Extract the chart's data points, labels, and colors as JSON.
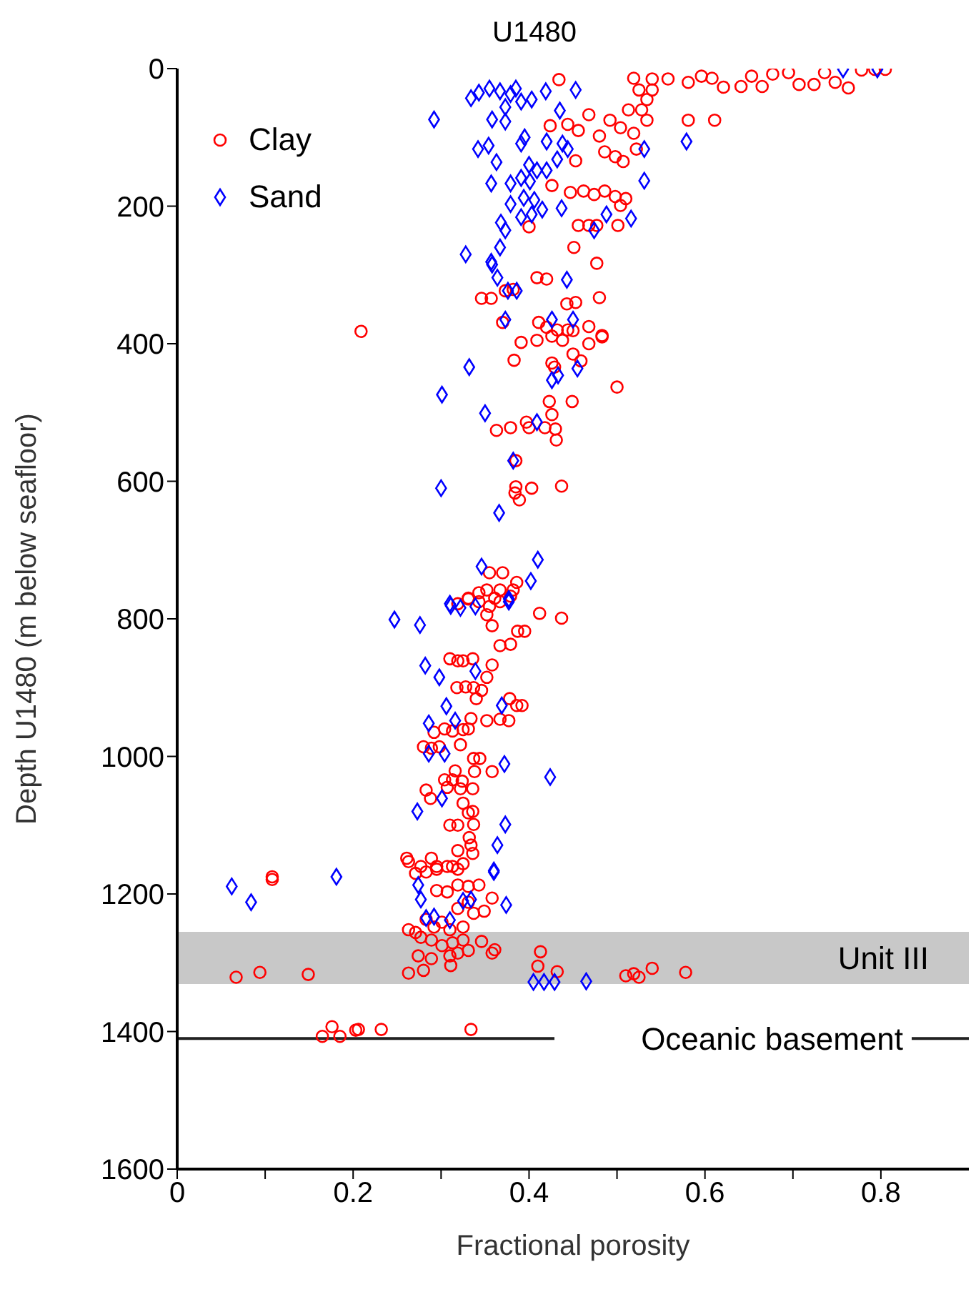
{
  "chart_data": {
    "type": "scatter",
    "title": "U1480",
    "xlabel": "Fractional porosity",
    "ylabel": "Depth U1480 (m below seafloor)",
    "xlim": [
      0,
      0.9
    ],
    "xticks": [
      0,
      {
        "value": 0.1,
        "label": null
      },
      0.2,
      {
        "value": 0.3,
        "label": null
      },
      0.4,
      {
        "value": 0.5,
        "label": null
      },
      0.6,
      {
        "value": 0.7,
        "label": null
      },
      0.8
    ],
    "ylim": [
      1600,
      0
    ],
    "yticks": [
      0,
      200,
      400,
      600,
      800,
      1000,
      1200,
      1400,
      1600
    ],
    "grid": false,
    "legend": "top left",
    "bands": [
      {
        "axis": "y",
        "from": 1255,
        "to": 1331,
        "label": "Unit III",
        "color": "#c8c8c8"
      }
    ],
    "ref_lines": [
      {
        "axis": "y",
        "value": 1410,
        "label": "Oceanic basement",
        "color": "#222222",
        "line_style": "solid"
      }
    ],
    "series": [
      {
        "name": "Clay",
        "color": "#ff0000",
        "marker": "circle",
        "x": [
          0.434,
          0.519,
          0.54,
          0.558,
          0.525,
          0.54,
          0.581,
          0.596,
          0.608,
          0.621,
          0.641,
          0.653,
          0.665,
          0.677,
          0.695,
          0.707,
          0.724,
          0.736,
          0.748,
          0.763,
          0.778,
          0.793,
          0.805,
          0.581,
          0.611,
          0.534,
          0.528,
          0.534,
          0.444,
          0.456,
          0.468,
          0.48,
          0.492,
          0.504,
          0.513,
          0.519,
          0.424,
          0.486,
          0.498,
          0.507,
          0.522,
          0.453,
          0.426,
          0.447,
          0.462,
          0.474,
          0.486,
          0.498,
          0.51,
          0.504,
          0.4,
          0.456,
          0.468,
          0.477,
          0.501,
          0.451,
          0.477,
          0.409,
          0.42,
          0.346,
          0.357,
          0.373,
          0.382,
          0.443,
          0.453,
          0.48,
          0.37,
          0.209,
          0.411,
          0.42,
          0.432,
          0.444,
          0.468,
          0.483,
          0.391,
          0.409,
          0.426,
          0.438,
          0.45,
          0.468,
          0.483,
          0.383,
          0.426,
          0.429,
          0.45,
          0.459,
          0.5,
          0.423,
          0.449,
          0.426,
          0.363,
          0.379,
          0.397,
          0.4,
          0.418,
          0.43,
          0.431,
          0.385,
          0.385,
          0.403,
          0.437,
          0.384,
          0.389,
          0.355,
          0.37,
          0.386,
          0.382,
          0.331,
          0.343,
          0.352,
          0.361,
          0.367,
          0.319,
          0.331,
          0.343,
          0.355,
          0.367,
          0.379,
          0.352,
          0.358,
          0.367,
          0.379,
          0.387,
          0.395,
          0.412,
          0.437,
          0.31,
          0.319,
          0.325,
          0.336,
          0.358,
          0.352,
          0.318,
          0.328,
          0.337,
          0.346,
          0.34,
          0.378,
          0.386,
          0.392,
          0.352,
          0.367,
          0.377,
          0.334,
          0.292,
          0.304,
          0.313,
          0.325,
          0.331,
          0.322,
          0.28,
          0.289,
          0.298,
          0.337,
          0.344,
          0.338,
          0.358,
          0.316,
          0.304,
          0.313,
          0.324,
          0.283,
          0.288,
          0.307,
          0.322,
          0.336,
          0.325,
          0.331,
          0.336,
          0.31,
          0.319,
          0.337,
          0.332,
          0.334,
          0.336,
          0.319,
          0.261,
          0.289,
          0.277,
          0.295,
          0.313,
          0.325,
          0.108,
          0.108,
          0.263,
          0.271,
          0.283,
          0.295,
          0.307,
          0.319,
          0.295,
          0.307,
          0.319,
          0.331,
          0.343,
          0.319,
          0.331,
          0.337,
          0.349,
          0.358,
          0.263,
          0.271,
          0.283,
          0.292,
          0.301,
          0.31,
          0.325,
          0.277,
          0.289,
          0.301,
          0.313,
          0.325,
          0.331,
          0.346,
          0.361,
          0.274,
          0.289,
          0.31,
          0.319,
          0.358,
          0.28,
          0.263,
          0.311,
          0.067,
          0.094,
          0.149,
          0.413,
          0.41,
          0.432,
          0.51,
          0.519,
          0.525,
          0.54,
          0.578,
          0.176,
          0.165,
          0.185,
          0.203,
          0.206,
          0.232,
          0.334
        ],
        "values": [
          16,
          14,
          15,
          15,
          31,
          31,
          20,
          11,
          14,
          27,
          26,
          11,
          26,
          8,
          6,
          23,
          23,
          6,
          20,
          28,
          2,
          1,
          1,
          75,
          75,
          45,
          60,
          75,
          81,
          90,
          67,
          98,
          75,
          86,
          60,
          94,
          83,
          121,
          128,
          135,
          117,
          134,
          170,
          180,
          178,
          183,
          178,
          186,
          189,
          199,
          230,
          228,
          228,
          228,
          228,
          260,
          283,
          304,
          306,
          334,
          334,
          323,
          321,
          342,
          340,
          333,
          369,
          382,
          369,
          376,
          380,
          380,
          375,
          388,
          398,
          395,
          389,
          395,
          381,
          400,
          390,
          424,
          428,
          434,
          415,
          425,
          463,
          484,
          484,
          503,
          526,
          522,
          514,
          522,
          522,
          524,
          540,
          570,
          608,
          610,
          607,
          617,
          627,
          733,
          733,
          747,
          758,
          770,
          762,
          758,
          770,
          758,
          778,
          771,
          775,
          782,
          775,
          767,
          794,
          810,
          839,
          837,
          818,
          818,
          792,
          799,
          858,
          861,
          861,
          858,
          867,
          885,
          900,
          899,
          900,
          904,
          916,
          916,
          926,
          926,
          948,
          946,
          948,
          945,
          965,
          960,
          963,
          961,
          960,
          983,
          986,
          988,
          986,
          1003,
          1003,
          1022,
          1022,
          1021,
          1034,
          1034,
          1036,
          1049,
          1061,
          1045,
          1047,
          1047,
          1068,
          1082,
          1080,
          1100,
          1100,
          1099,
          1118,
          1129,
          1141,
          1137,
          1148,
          1148,
          1160,
          1160,
          1160,
          1156,
          1175,
          1179,
          1153,
          1170,
          1168,
          1164,
          1160,
          1164,
          1195,
          1197,
          1187,
          1189,
          1187,
          1221,
          1212,
          1228,
          1225,
          1206,
          1252,
          1256,
          1237,
          1248,
          1241,
          1252,
          1248,
          1263,
          1267,
          1275,
          1271,
          1267,
          1282,
          1269,
          1281,
          1290,
          1294,
          1290,
          1286,
          1286,
          1311,
          1315,
          1304,
          1321,
          1314,
          1317,
          1284,
          1305,
          1313,
          1319,
          1316,
          1321,
          1308,
          1314,
          1393,
          1407,
          1407,
          1398,
          1397,
          1397,
          1397
        ]
      },
      {
        "name": "Sand",
        "color": "#0000ff",
        "marker": "diamond",
        "x": [
          0.292,
          0.334,
          0.343,
          0.355,
          0.367,
          0.379,
          0.391,
          0.403,
          0.373,
          0.385,
          0.358,
          0.373,
          0.419,
          0.453,
          0.435,
          0.342,
          0.354,
          0.391,
          0.395,
          0.42,
          0.438,
          0.363,
          0.579,
          0.531,
          0.4,
          0.391,
          0.409,
          0.42,
          0.432,
          0.444,
          0.357,
          0.379,
          0.401,
          0.531,
          0.394,
          0.406,
          0.379,
          0.415,
          0.391,
          0.403,
          0.437,
          0.488,
          0.516,
          0.474,
          0.368,
          0.373,
          0.367,
          0.328,
          0.357,
          0.358,
          0.364,
          0.376,
          0.386,
          0.443,
          0.373,
          0.426,
          0.45,
          0.332,
          0.455,
          0.426,
          0.433,
          0.301,
          0.35,
          0.409,
          0.382,
          0.3,
          0.366,
          0.346,
          0.41,
          0.402,
          0.377,
          0.31,
          0.247,
          0.276,
          0.311,
          0.322,
          0.339,
          0.377,
          0.282,
          0.298,
          0.339,
          0.306,
          0.369,
          0.286,
          0.316,
          0.286,
          0.304,
          0.372,
          0.424,
          0.301,
          0.273,
          0.373,
          0.364,
          0.36,
          0.181,
          0.062,
          0.084,
          0.36,
          0.374,
          0.274,
          0.277,
          0.283,
          0.292,
          0.31,
          0.325,
          0.334,
          0.405,
          0.417,
          0.429,
          0.465,
          0.757,
          0.796
        ],
        "values": [
          74,
          43,
          35,
          29,
          33,
          37,
          48,
          45,
          56,
          29,
          74,
          77,
          33,
          31,
          61,
          117,
          112,
          109,
          100,
          106,
          109,
          136,
          106,
          117,
          140,
          159,
          148,
          148,
          132,
          117,
          167,
          167,
          164,
          163,
          188,
          191,
          197,
          205,
          216,
          212,
          203,
          212,
          218,
          235,
          224,
          235,
          260,
          270,
          281,
          285,
          304,
          323,
          323,
          307,
          365,
          365,
          365,
          434,
          436,
          453,
          446,
          474,
          501,
          514,
          570,
          610,
          646,
          724,
          714,
          745,
          771,
          778,
          801,
          809,
          781,
          784,
          782,
          775,
          868,
          885,
          876,
          927,
          926,
          952,
          948,
          996,
          996,
          1011,
          1030,
          1061,
          1080,
          1099,
          1129,
          1166,
          1175,
          1189,
          1212,
          1168,
          1216,
          1187,
          1208,
          1235,
          1233,
          1238,
          1210,
          1208,
          1328,
          1328,
          1328,
          1327,
          1,
          1
        ]
      }
    ]
  }
}
